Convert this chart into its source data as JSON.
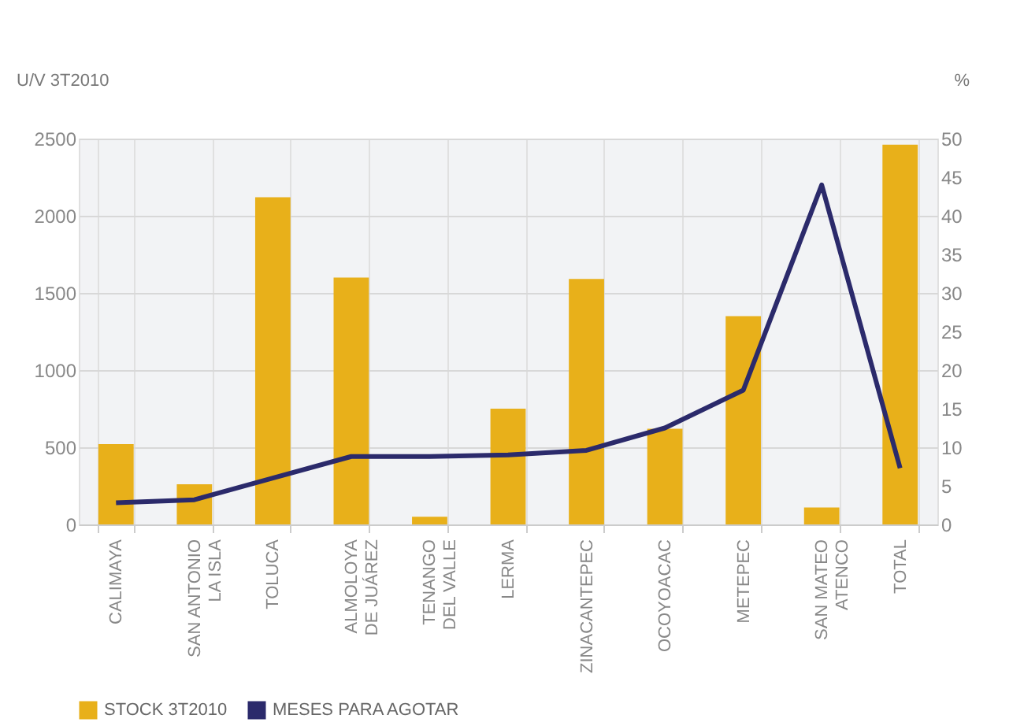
{
  "chart_data": {
    "type": "bar",
    "ylabel": "U/V 3T2010",
    "y2label": "%",
    "categories": [
      "CALIMAYA",
      "SAN ANTONIO LA ISLA",
      "TOLUCA",
      "ALMOLOYA DE JUÁREZ",
      "TENANGO DEL VALLE",
      "LERMA",
      "ZINACANTEPEC",
      "OCOYOACAC",
      "METEPEC",
      "SAN MATEO ATENCO",
      "TOTAL"
    ],
    "series": [
      {
        "name": "STOCK 3T2010",
        "color": "#e8b01a",
        "values": [
          520,
          260,
          2120,
          1600,
          50,
          750,
          1590,
          620,
          1350,
          110,
          2460
        ]
      },
      {
        "name": "MESES PARA AGOTAR",
        "type": "line",
        "axis": "y2",
        "color": "#2b2a6b",
        "values": [
          2.8,
          3.2,
          6,
          8.8,
          8.8,
          9,
          9.6,
          12.5,
          17.4,
          44,
          7.3
        ]
      }
    ],
    "ylim": [
      0,
      2500
    ],
    "yticks": [
      0,
      500,
      1000,
      1500,
      2000,
      2500
    ],
    "y2lim": [
      0,
      50
    ],
    "y2ticks": [
      0,
      5,
      10,
      15,
      20,
      25,
      30,
      35,
      40,
      45,
      50
    ],
    "grid": "y",
    "legend": "bottom",
    "marker": "none",
    "line_style": "solid"
  }
}
